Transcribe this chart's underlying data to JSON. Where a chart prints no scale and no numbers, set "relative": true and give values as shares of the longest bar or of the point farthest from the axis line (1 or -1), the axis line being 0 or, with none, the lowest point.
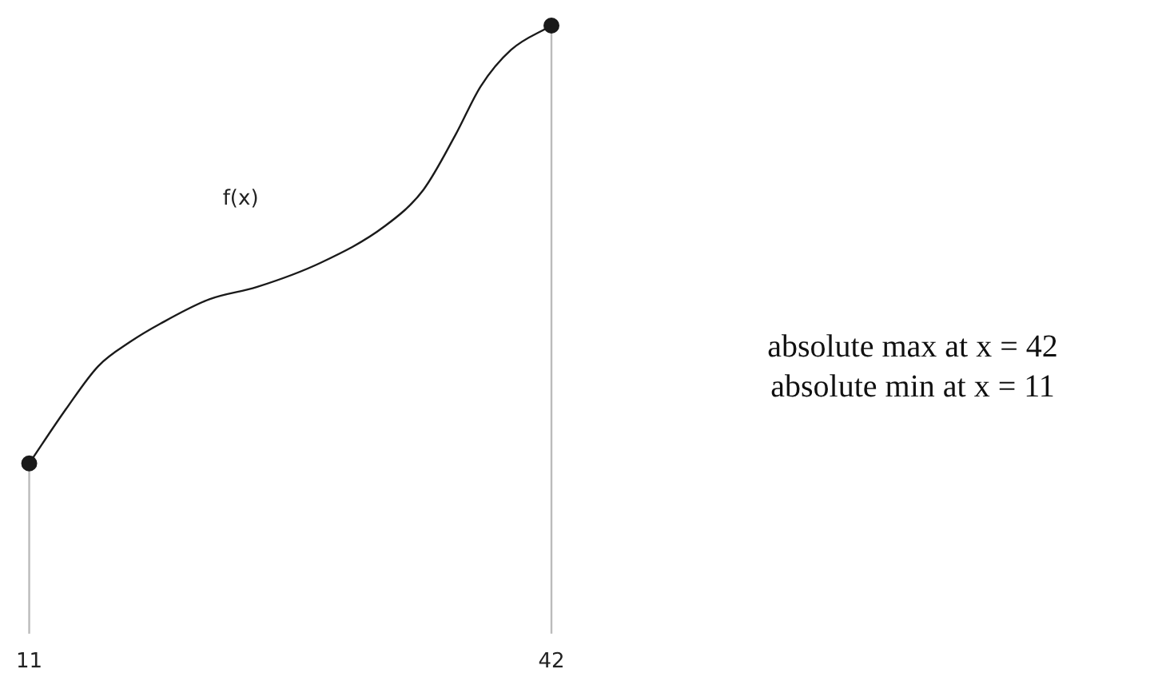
{
  "chart_data": {
    "type": "line",
    "relative": true,
    "xlim": [
      11,
      42
    ],
    "xticks": [
      11,
      42
    ],
    "grid": false,
    "legend": false,
    "series": [
      {
        "name": "f(x)",
        "color": "#1a1a1a",
        "marker": "none",
        "x": [
          11,
          13.2,
          15.1,
          17,
          18.8,
          21.7,
          24.5,
          28.3,
          32.1,
          34.4,
          36.3,
          37.8,
          39.6,
          42
        ],
        "values": [
          0.28,
          0.37,
          0.44,
          0.48,
          0.51,
          0.55,
          0.57,
          0.61,
          0.67,
          0.73,
          0.82,
          0.9,
          0.96,
          1
        ]
      },
      {
        "type": "scatter",
        "color": "#1a1a1a",
        "marker": "circle",
        "x": [
          11,
          42
        ],
        "values": [
          0.28,
          1
        ]
      }
    ],
    "ref_lines": [
      {
        "axis": "x",
        "value": 11,
        "color": "#bbbbbb"
      },
      {
        "axis": "x",
        "value": 42,
        "color": "#bbbbbb"
      }
    ],
    "annotations": [
      "absolute max at x = 42",
      "absolute min at x = 11"
    ]
  }
}
